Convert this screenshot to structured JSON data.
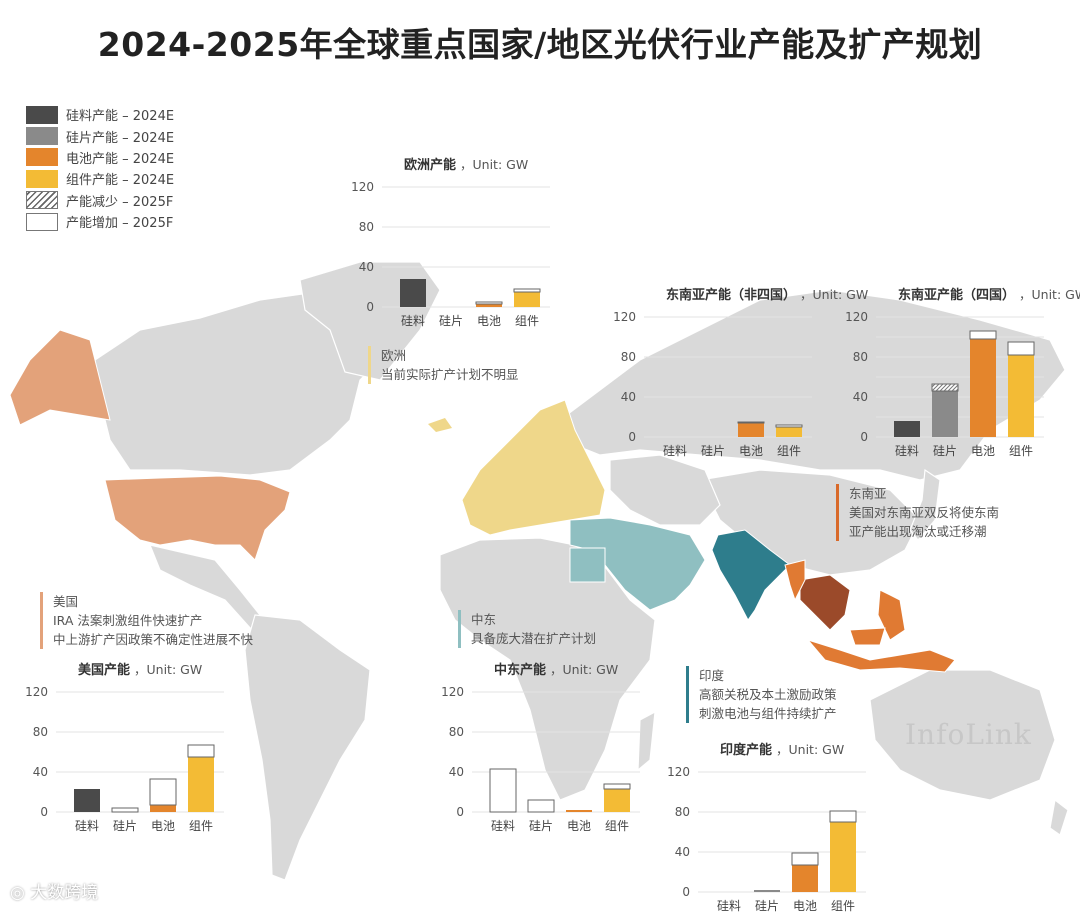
{
  "title": "2024-2025年全球重点国家/地区光伏行业产能及扩产规划",
  "colors": {
    "silicon": "#4a4a4a",
    "wafer": "#8a8a8a",
    "cell": "#e4852c",
    "module": "#f3bb35",
    "map_base": "#d9d9d9",
    "usa": "#e3a27a",
    "europe": "#efd78a",
    "middle_east": "#8fbfc1",
    "india": "#2e7d8c",
    "sea_other": "#e07a33",
    "sea_four": "#9b4a2a"
  },
  "legend": [
    {
      "label": "硅料产能 – 2024E",
      "style": "silicon"
    },
    {
      "label": "硅片产能 – 2024E",
      "style": "wafer"
    },
    {
      "label": "电池产能 – 2024E",
      "style": "cell"
    },
    {
      "label": "组件产能 – 2024E",
      "style": "module"
    },
    {
      "label": "产能减少 – 2025F",
      "style": "hatch"
    },
    {
      "label": "产能增加 – 2025F",
      "style": "outline"
    }
  ],
  "chart_data": [
    {
      "id": "europe",
      "type": "bar",
      "title": "欧洲产能",
      "unit": "Unit: GW",
      "categories": [
        "硅料",
        "硅片",
        "电池",
        "组件"
      ],
      "values_2024": [
        28,
        0,
        3,
        15
      ],
      "change_2025": [
        0,
        0,
        2,
        3
      ],
      "yticks": [
        0,
        40,
        80,
        120
      ],
      "ylim": [
        0,
        120
      ]
    },
    {
      "id": "sea_other",
      "type": "bar",
      "title": "东南亚产能（非四国）",
      "unit": "Unit: GW",
      "categories": [
        "硅料",
        "硅片",
        "电池",
        "组件"
      ],
      "values_2024": [
        0,
        0,
        14,
        10
      ],
      "change_2025": [
        0,
        0,
        1,
        2
      ],
      "yticks": [
        0,
        40,
        80,
        120
      ],
      "ylim": [
        0,
        120
      ]
    },
    {
      "id": "sea_four",
      "type": "bar",
      "title": "东南亚产能（四国）",
      "unit": "Unit: GW",
      "categories": [
        "硅料",
        "硅片",
        "电池",
        "组件"
      ],
      "values_2024": [
        16,
        53,
        106,
        95
      ],
      "change_2025": [
        0,
        -7,
        -8,
        -13
      ],
      "yticks": [
        0,
        20,
        40,
        60,
        80,
        100,
        120
      ],
      "ytick_labels": [
        0,
        40,
        80,
        120
      ],
      "ylim": [
        0,
        120
      ]
    },
    {
      "id": "usa",
      "type": "bar",
      "title": "美国产能",
      "unit": "Unit: GW",
      "categories": [
        "硅料",
        "硅片",
        "电池",
        "组件"
      ],
      "values_2024": [
        23,
        0,
        7,
        55
      ],
      "change_2025": [
        0,
        4,
        26,
        12
      ],
      "yticks": [
        0,
        40,
        80,
        120
      ],
      "ylim": [
        0,
        120
      ]
    },
    {
      "id": "middle_east",
      "type": "bar",
      "title": "中东产能",
      "unit": "Unit: GW",
      "categories": [
        "硅料",
        "硅片",
        "电池",
        "组件"
      ],
      "values_2024": [
        0,
        0,
        2,
        23
      ],
      "change_2025": [
        43,
        12,
        0,
        5
      ],
      "yticks": [
        0,
        40,
        80,
        120
      ],
      "ylim": [
        0,
        120
      ]
    },
    {
      "id": "india",
      "type": "bar",
      "title": "印度产能",
      "unit": "Unit: GW",
      "categories": [
        "硅料",
        "硅片",
        "电池",
        "组件"
      ],
      "values_2024": [
        0,
        2,
        27,
        70
      ],
      "change_2025": [
        0,
        0,
        12,
        11
      ],
      "yticks": [
        0,
        40,
        80,
        120
      ],
      "ylim": [
        0,
        120
      ]
    }
  ],
  "notes": {
    "europe": {
      "title": "欧洲",
      "lines": [
        "当前实际扩产计划不明显"
      ]
    },
    "sea": {
      "title": "东南亚",
      "lines": [
        "美国对东南亚双反将使东南",
        "亚产能出现淘汰或迁移潮"
      ]
    },
    "usa": {
      "title": "美国",
      "lines": [
        "IRA 法案刺激组件快速扩产",
        "中上游扩产因政策不确定性进展不快"
      ]
    },
    "middle_east": {
      "title": "中东",
      "lines": [
        "具备庞大潜在扩产计划"
      ]
    },
    "india": {
      "title": "印度",
      "lines": [
        "高额关税及本土激励政策",
        "刺激电池与组件持续扩产"
      ]
    }
  },
  "watermark": "InfoLink",
  "source_mark": "大数跨境"
}
